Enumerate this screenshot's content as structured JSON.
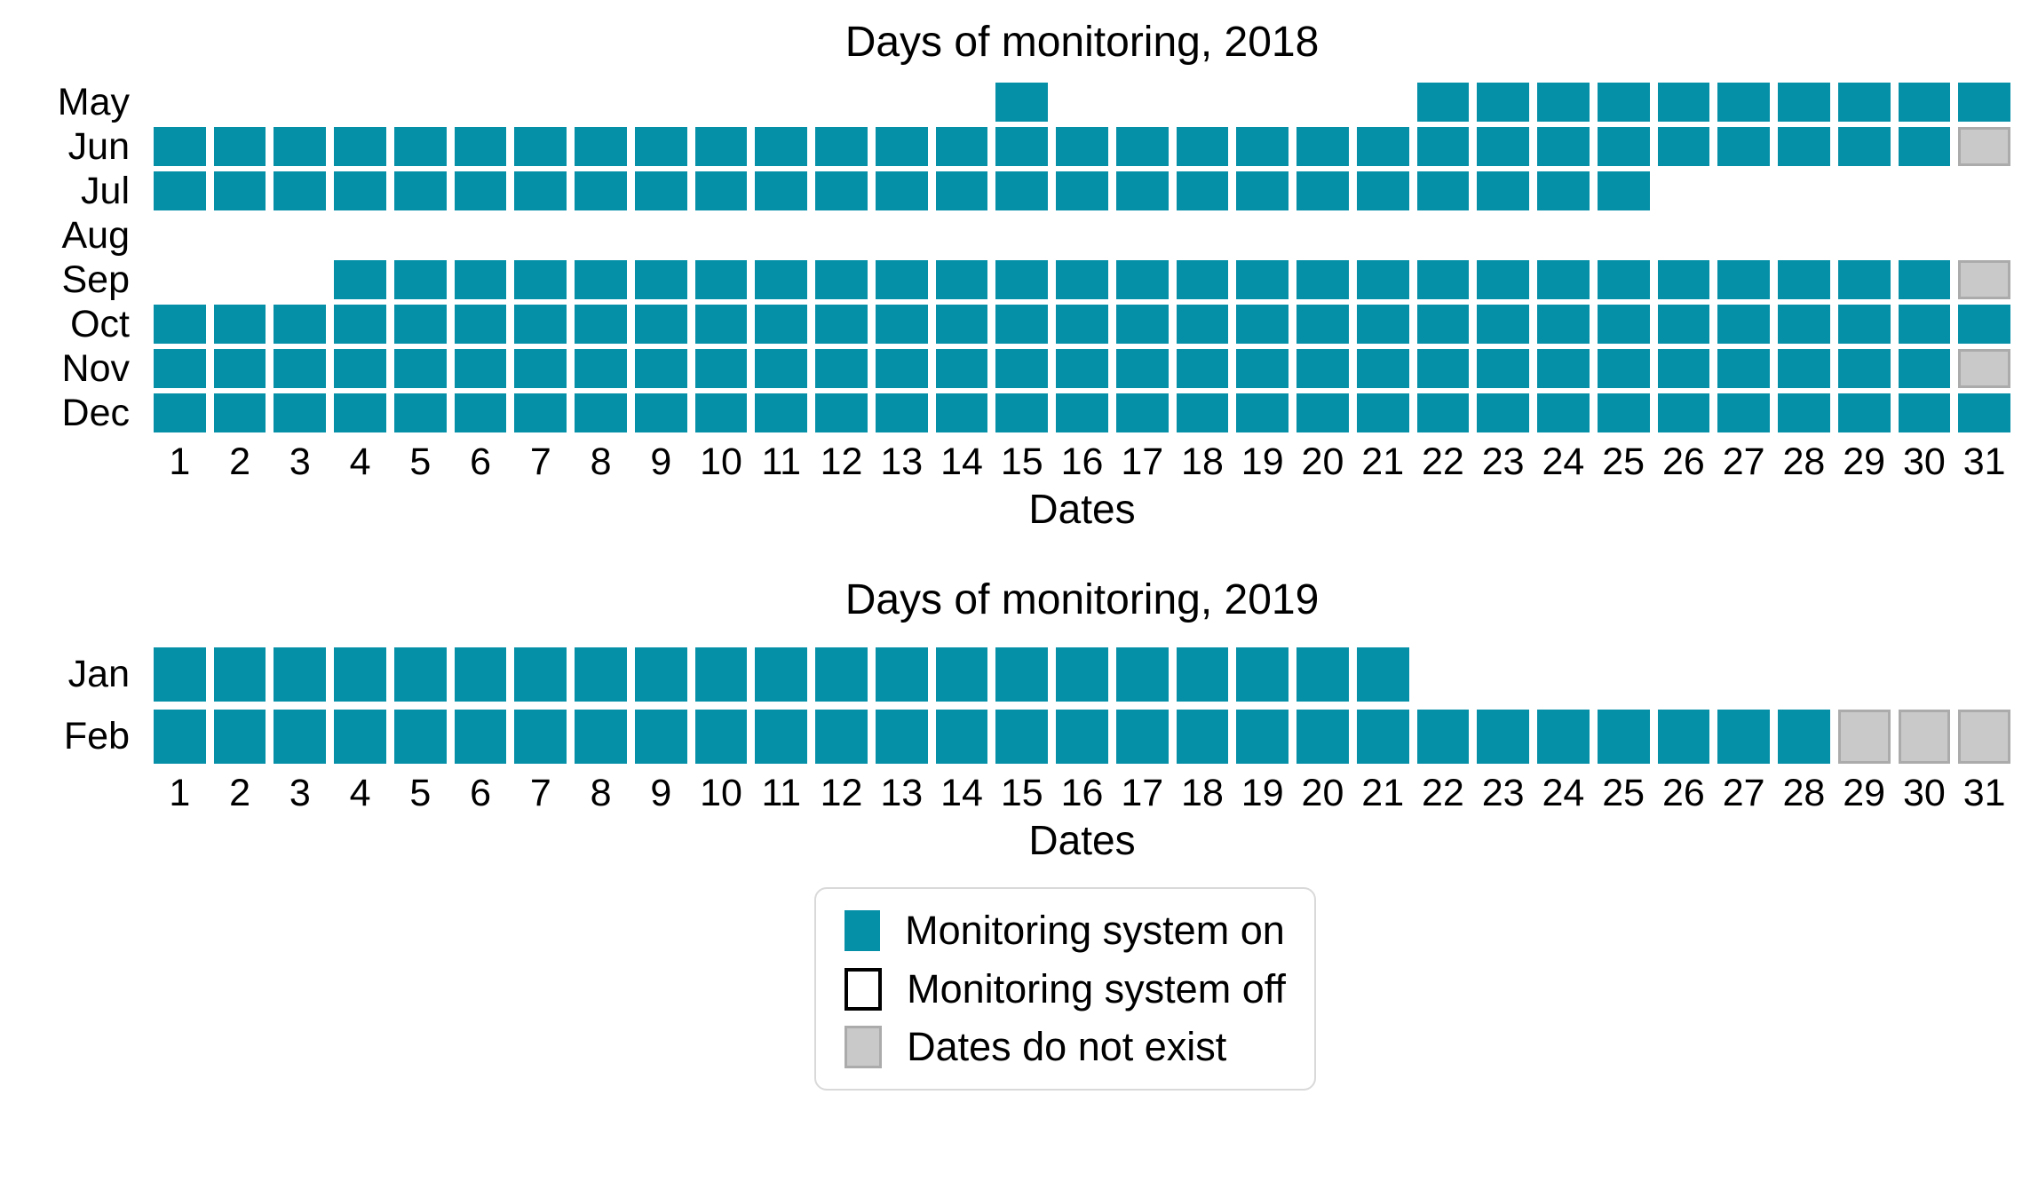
{
  "chart_data": [
    {
      "type": "heatmap",
      "title": "Days of monitoring, 2018",
      "xlabel": "Dates",
      "x_ticks": [
        1,
        2,
        3,
        4,
        5,
        6,
        7,
        8,
        9,
        10,
        11,
        12,
        13,
        14,
        15,
        16,
        17,
        18,
        19,
        20,
        21,
        22,
        23,
        24,
        25,
        26,
        27,
        28,
        29,
        30,
        31
      ],
      "months": [
        {
          "label": "May",
          "on_days": [
            15,
            22,
            23,
            24,
            25,
            26,
            27,
            28,
            29,
            30,
            31
          ],
          "nonexistent_days": []
        },
        {
          "label": "Jun",
          "on_days": [
            1,
            2,
            3,
            4,
            5,
            6,
            7,
            8,
            9,
            10,
            11,
            12,
            13,
            14,
            15,
            16,
            17,
            18,
            19,
            20,
            21,
            22,
            23,
            24,
            25,
            26,
            27,
            28,
            29,
            30
          ],
          "nonexistent_days": [
            31
          ]
        },
        {
          "label": "Jul",
          "on_days": [
            1,
            2,
            3,
            4,
            5,
            6,
            7,
            8,
            9,
            10,
            11,
            12,
            13,
            14,
            15,
            16,
            17,
            18,
            19,
            20,
            21,
            22,
            23,
            24,
            25
          ],
          "nonexistent_days": []
        },
        {
          "label": "Aug",
          "on_days": [],
          "nonexistent_days": []
        },
        {
          "label": "Sep",
          "on_days": [
            4,
            5,
            6,
            7,
            8,
            9,
            10,
            11,
            12,
            13,
            14,
            15,
            16,
            17,
            18,
            19,
            20,
            21,
            22,
            23,
            24,
            25,
            26,
            27,
            28,
            29,
            30
          ],
          "nonexistent_days": [
            31
          ]
        },
        {
          "label": "Oct",
          "on_days": [
            1,
            2,
            3,
            4,
            5,
            6,
            7,
            8,
            9,
            10,
            11,
            12,
            13,
            14,
            15,
            16,
            17,
            18,
            19,
            20,
            21,
            22,
            23,
            24,
            25,
            26,
            27,
            28,
            29,
            30,
            31
          ],
          "nonexistent_days": []
        },
        {
          "label": "Nov",
          "on_days": [
            1,
            2,
            3,
            4,
            5,
            6,
            7,
            8,
            9,
            10,
            11,
            12,
            13,
            14,
            15,
            16,
            17,
            18,
            19,
            20,
            21,
            22,
            23,
            24,
            25,
            26,
            27,
            28,
            29,
            30
          ],
          "nonexistent_days": [
            31
          ]
        },
        {
          "label": "Dec",
          "on_days": [
            1,
            2,
            3,
            4,
            5,
            6,
            7,
            8,
            9,
            10,
            11,
            12,
            13,
            14,
            15,
            16,
            17,
            18,
            19,
            20,
            21,
            22,
            23,
            24,
            25,
            26,
            27,
            28,
            29,
            30,
            31
          ],
          "nonexistent_days": []
        }
      ]
    },
    {
      "type": "heatmap",
      "title": "Days of monitoring, 2019",
      "xlabel": "Dates",
      "x_ticks": [
        1,
        2,
        3,
        4,
        5,
        6,
        7,
        8,
        9,
        10,
        11,
        12,
        13,
        14,
        15,
        16,
        17,
        18,
        19,
        20,
        21,
        22,
        23,
        24,
        25,
        26,
        27,
        28,
        29,
        30,
        31
      ],
      "months": [
        {
          "label": "Jan",
          "on_days": [
            1,
            2,
            3,
            4,
            5,
            6,
            7,
            8,
            9,
            10,
            11,
            12,
            13,
            14,
            15,
            16,
            17,
            18,
            19,
            20,
            21
          ],
          "nonexistent_days": []
        },
        {
          "label": "Feb",
          "on_days": [
            1,
            2,
            3,
            4,
            5,
            6,
            7,
            8,
            9,
            10,
            11,
            12,
            13,
            14,
            15,
            16,
            17,
            18,
            19,
            20,
            21,
            22,
            23,
            24,
            25,
            26,
            27,
            28
          ],
          "nonexistent_days": [
            29,
            30,
            31
          ]
        }
      ]
    }
  ],
  "legend": {
    "items": [
      {
        "swatch": "on",
        "label": "Monitoring system on"
      },
      {
        "swatch": "off",
        "label": "Monitoring system off"
      },
      {
        "swatch": "nonexistent",
        "label": "Dates do not exist"
      }
    ]
  },
  "colors": {
    "on": "#0690a8",
    "nonexistent_fill": "#c9c9c9",
    "nonexistent_border": "#ababab",
    "legend_border": "#d9d9d9",
    "text": "#000000"
  }
}
